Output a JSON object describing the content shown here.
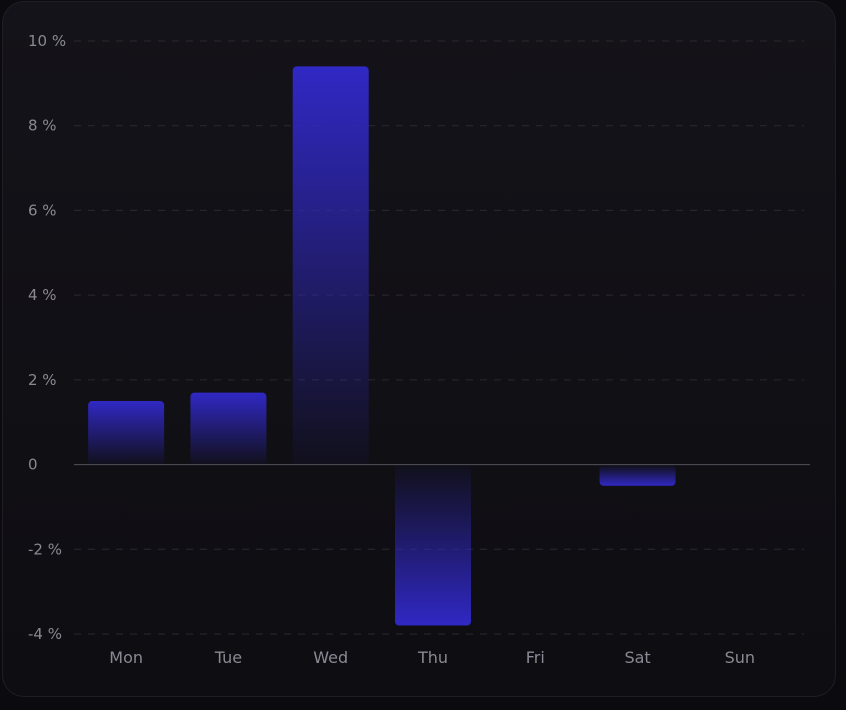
{
  "chart_data": {
    "type": "bar",
    "categories": [
      "Mon",
      "Tue",
      "Wed",
      "Thu",
      "Fri",
      "Sat",
      "Sun"
    ],
    "values": [
      1.5,
      1.7,
      9.4,
      -3.8,
      0,
      -0.5,
      0
    ],
    "y_ticks": [
      {
        "value": 10,
        "label": "10 %"
      },
      {
        "value": 8,
        "label": "8 %"
      },
      {
        "value": 6,
        "label": "6 %"
      },
      {
        "value": 4,
        "label": "4 %"
      },
      {
        "value": 2,
        "label": "2 %"
      },
      {
        "value": 0,
        "label": "0"
      },
      {
        "value": -2,
        "label": "-2 %"
      },
      {
        "value": -4,
        "label": "-4 %"
      }
    ],
    "ylim": [
      -4,
      10
    ],
    "grid": true,
    "bar_color": "#3028c4",
    "title": "",
    "xlabel": "",
    "ylabel": ""
  }
}
